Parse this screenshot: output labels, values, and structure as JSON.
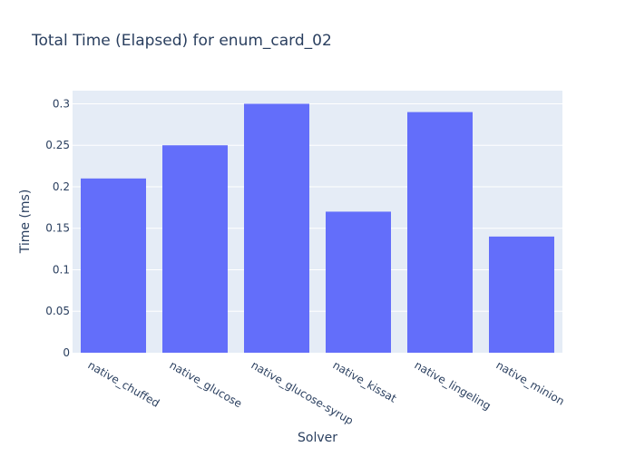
{
  "chart_data": {
    "type": "bar",
    "title": "Total Time (Elapsed) for enum_card_02",
    "xlabel": "Solver",
    "ylabel": "Time (ms)",
    "categories": [
      "native_chuffed",
      "native_glucose",
      "native_glucose-syrup",
      "native_kissat",
      "native_lingeling",
      "native_minion"
    ],
    "values": [
      0.21,
      0.25,
      0.3,
      0.17,
      0.29,
      0.14
    ],
    "ylim": [
      0,
      0.3158
    ],
    "yticks": [
      0,
      0.05,
      0.1,
      0.15,
      0.2,
      0.25,
      0.3
    ],
    "ytick_labels": [
      "0",
      "0.05",
      "0.1",
      "0.15",
      "0.2",
      "0.25",
      "0.3"
    ],
    "grid": true,
    "legend": "none",
    "colors": {
      "bar": "#636efa",
      "plot_background": "#e5ecf6",
      "gridline": "#ffffff",
      "text": "#2a3f5f"
    }
  }
}
